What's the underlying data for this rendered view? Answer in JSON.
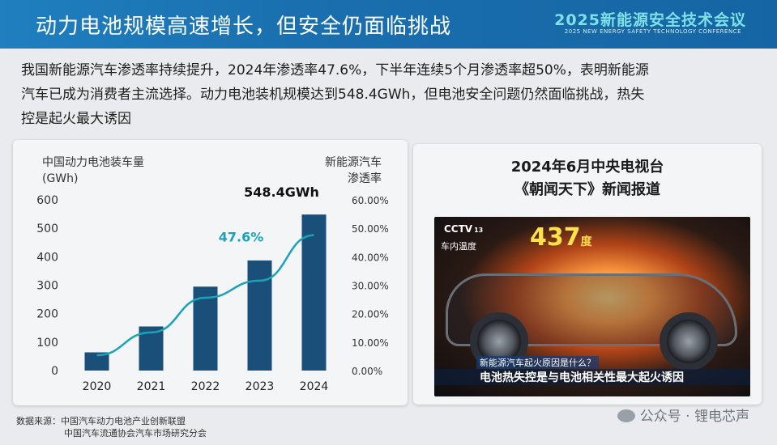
{
  "header": {
    "title": "动力电池规模高速增长，但安全仍面临挑战",
    "conference_title": "2025新能源安全技术会议",
    "conference_subtitle": "2025 NEW ENERGY SAFETY TECHNOLOGY CONFERENCE"
  },
  "intro": {
    "line1": "我国新能源汽车渗透率持续提升，2024年渗透率47.6%，下半年连续5个月渗透率超50%，表明新能源",
    "line2": "汽车已成为消费者主流选择。动力电池装机规模达到548.4GWh，但电池安全问题仍然面临挑战，热失",
    "line3": "控是起火最大诱因"
  },
  "chart_data": {
    "type": "bar",
    "categories": [
      "2020",
      "2021",
      "2022",
      "2023",
      "2024"
    ],
    "series": [
      {
        "name": "中国动力电池装车量",
        "type": "bar",
        "values": [
          64,
          155,
          295,
          387,
          548.4
        ],
        "color": "#1a4f7a"
      },
      {
        "name": "新能源汽车渗透率",
        "type": "line",
        "values": [
          5.4,
          13.4,
          25.6,
          31.6,
          47.6
        ],
        "color": "#1aa3b8"
      }
    ],
    "ylabel_left_line1": "中国动力电池装车量",
    "ylabel_left_line2": "(GWh)",
    "ylabel_right_line1": "新能源汽车",
    "ylabel_right_line2": "渗透率",
    "ylim_left": [
      0,
      600
    ],
    "ylim_right": [
      0,
      60
    ],
    "yticks_left": [
      "0",
      "100",
      "200",
      "300",
      "400",
      "500",
      "600"
    ],
    "yticks_right": [
      "0.00%",
      "10.00%",
      "20.00%",
      "30.00%",
      "40.00%",
      "50.00%",
      "60.00%"
    ],
    "annotation_bar": "548.4GWh",
    "annotation_line": "47.6%",
    "grid": false
  },
  "news": {
    "title_line1": "2024年6月中央电视台",
    "title_line2": "《朝闻天下》新闻报道",
    "cctv_logo": "CCTV",
    "cctv_channel": "13",
    "temp_label": "车内温度",
    "temp_value": "437",
    "temp_unit": "度",
    "caption_top": "新能源汽车起火原因是什么？",
    "caption_bottom": "电池热失控是与电池相关性最大起火诱因"
  },
  "source": {
    "label": "数据来源：",
    "line1": "中国汽车动力电池产业创新联盟",
    "line2": "中国汽车流通协会汽车市场研究分会"
  },
  "watermark": "公众号 · 锂电芯声"
}
